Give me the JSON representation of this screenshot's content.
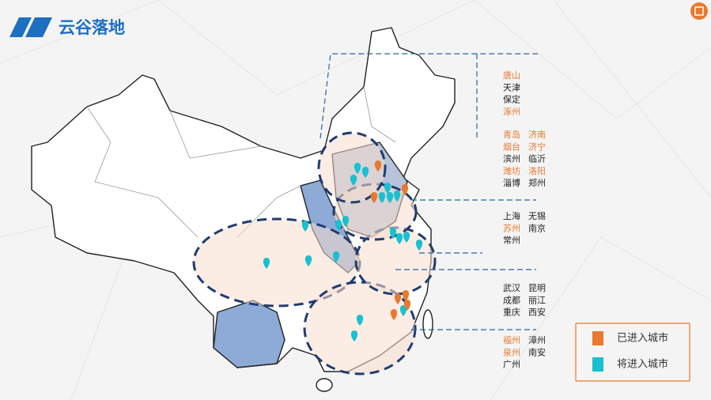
{
  "header": {
    "title": "云谷落地"
  },
  "groups": [
    {
      "rows": [
        [
          {
            "name": "唐山",
            "color": "#e8792f"
          }
        ],
        [
          {
            "name": "天津",
            "color": "#222222"
          }
        ],
        [
          {
            "name": "保定",
            "color": "#222222"
          }
        ],
        [
          {
            "name": "涿州",
            "color": "#e8792f"
          }
        ]
      ]
    },
    {
      "rows": [
        [
          {
            "name": "青岛",
            "color": "#e8792f"
          },
          {
            "name": "济南",
            "color": "#e8792f"
          }
        ],
        [
          {
            "name": "烟台",
            "color": "#e8792f"
          },
          {
            "name": "济宁",
            "color": "#e8792f"
          }
        ],
        [
          {
            "name": "滨州",
            "color": "#222222"
          },
          {
            "name": "临沂",
            "color": "#222222"
          }
        ],
        [
          {
            "name": "潍坊",
            "color": "#e8792f"
          },
          {
            "name": "洛阳",
            "color": "#e8792f"
          }
        ],
        [
          {
            "name": "淄博",
            "color": "#222222"
          },
          {
            "name": "郑州",
            "color": "#222222"
          }
        ]
      ]
    },
    {
      "rows": [
        [
          {
            "name": "上海",
            "color": "#222222"
          },
          {
            "name": "无锡",
            "color": "#222222"
          }
        ],
        [
          {
            "name": "苏州",
            "color": "#e8792f"
          },
          {
            "name": "南京",
            "color": "#222222"
          }
        ],
        [
          {
            "name": "常州",
            "color": "#222222"
          }
        ]
      ]
    },
    {
      "rows": [
        [
          {
            "name": "武汉",
            "color": "#222222"
          },
          {
            "name": "昆明",
            "color": "#222222"
          }
        ],
        [
          {
            "name": "成都",
            "color": "#222222"
          },
          {
            "name": "丽江",
            "color": "#222222"
          }
        ],
        [
          {
            "name": "重庆",
            "color": "#222222"
          },
          {
            "name": "西安",
            "color": "#222222"
          }
        ]
      ]
    },
    {
      "rows": [
        [
          {
            "name": "福州",
            "color": "#e8792f"
          },
          {
            "name": "漳州",
            "color": "#222222"
          }
        ],
        [
          {
            "name": "泉州",
            "color": "#e8792f"
          },
          {
            "name": "南安",
            "color": "#222222"
          }
        ],
        [
          {
            "name": "广州",
            "color": "#222222"
          }
        ]
      ]
    }
  ],
  "legend": [
    {
      "label": "已进入城市",
      "color": "#e8792f"
    },
    {
      "label": "将进入城市",
      "color": "#19c0d0"
    }
  ]
}
